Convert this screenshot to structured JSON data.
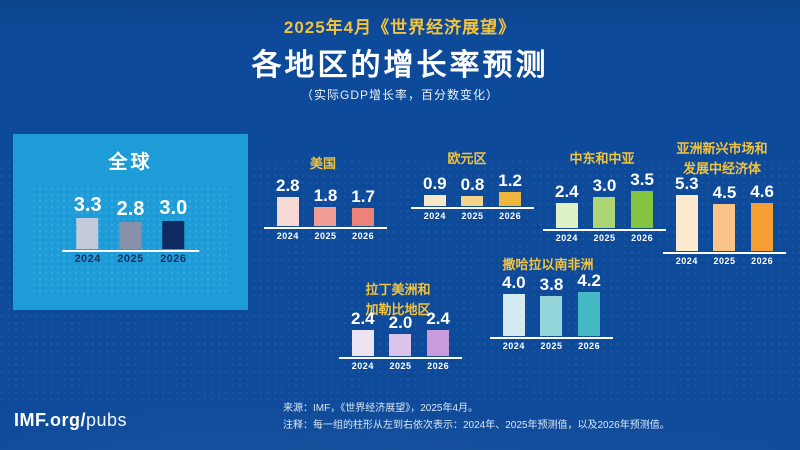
{
  "header": {
    "kicker": "2025年4月《世界经济展望》",
    "title": "各地区的增长率预测",
    "subtitle": "（实际GDP增长率，百分数变化）"
  },
  "footer": {
    "source": "来源：IMF，《世界经济展望》，2025年4月。",
    "note": "注释：每一组的柱形从左到右依次表示：2024年、2025年预测值，以及2026年预测值。",
    "brand_bold": "IMF.org/",
    "brand_light": "pubs"
  },
  "colors": {
    "background": "#0e4a9a",
    "accent_gold": "#f2c33e",
    "global_box": "#1d9cd8",
    "year_label_on_box": "#14305f",
    "baseline": "#ffffff"
  },
  "chart_data": {
    "type": "bar",
    "title": "各地区的增长率预测",
    "subtitle": "实际GDP增长率，百分数变化",
    "years": [
      "2024",
      "2025",
      "2026"
    ],
    "legend_note": "每组柱形从左到右为2024年、2025年预测值、2026年预测值",
    "groups": [
      {
        "region": "全球",
        "region_lines": [
          "全球"
        ],
        "values": [
          3.3,
          2.8,
          3.0
        ],
        "colors": [
          "#c3cad9",
          "#8792aa",
          "#0e2a63"
        ]
      },
      {
        "region": "美国",
        "region_lines": [
          "美国"
        ],
        "values": [
          2.8,
          1.8,
          1.7
        ],
        "colors": [
          "#f7dad6",
          "#f09d94",
          "#ec8278"
        ]
      },
      {
        "region": "欧元区",
        "region_lines": [
          "欧元区"
        ],
        "values": [
          0.9,
          0.8,
          1.2
        ],
        "colors": [
          "#f6e8c8",
          "#f3d48c",
          "#eeb63c"
        ]
      },
      {
        "region": "中东和中亚",
        "region_lines": [
          "中东和中亚"
        ],
        "values": [
          2.4,
          3.0,
          3.5
        ],
        "colors": [
          "#def0c6",
          "#abd573",
          "#83c342"
        ]
      },
      {
        "region": "亚洲新兴市场和发展中经济体",
        "region_lines": [
          "亚洲新兴市场和",
          "发展中经济体"
        ],
        "values": [
          5.3,
          4.5,
          4.6
        ],
        "colors": [
          "#fcead0",
          "#fac488",
          "#f59e33"
        ]
      },
      {
        "region": "拉丁美洲和加勒比地区",
        "region_lines": [
          "拉丁美洲和",
          "加勒比地区"
        ],
        "values": [
          2.4,
          2.0,
          2.4
        ],
        "colors": [
          "#ede4f3",
          "#dcc3e9",
          "#c89cda"
        ]
      },
      {
        "region": "撒哈拉以南非洲",
        "region_lines": [
          "撒哈拉以南非洲"
        ],
        "values": [
          4.0,
          3.8,
          4.2
        ],
        "colors": [
          "#d3ebee",
          "#94d5da",
          "#45bac4"
        ]
      }
    ]
  }
}
